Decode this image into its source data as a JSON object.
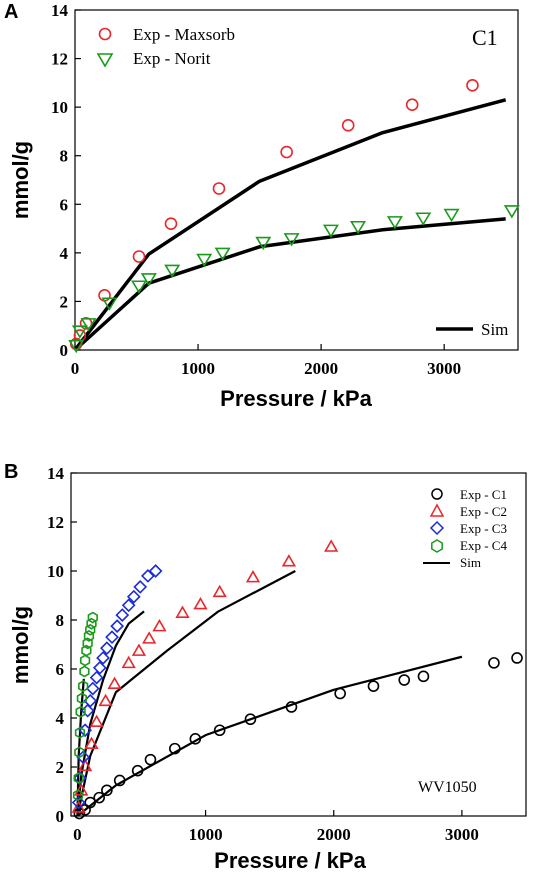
{
  "chart_data": [
    {
      "panel_label": "A",
      "type": "scatter",
      "annotation": "C1",
      "xlabel": "Pressure / kPa",
      "ylabel": "mmol/g",
      "xlim": [
        0,
        3600
      ],
      "ylim": [
        0,
        14
      ],
      "xticks": [
        0,
        1000,
        2000,
        3000
      ],
      "yticks": [
        0,
        2,
        4,
        6,
        8,
        10,
        12,
        14
      ],
      "grid": false,
      "series": [
        {
          "name": "Exp - Maxsorb",
          "marker": "circle",
          "color": "#e8262b",
          "points": [
            [
              10,
              0.25
            ],
            [
              40,
              0.6
            ],
            [
              90,
              1.1
            ],
            [
              240,
              2.25
            ],
            [
              520,
              3.85
            ],
            [
              780,
              5.2
            ],
            [
              1170,
              6.65
            ],
            [
              1720,
              8.15
            ],
            [
              2220,
              9.25
            ],
            [
              2740,
              10.1
            ],
            [
              3230,
              10.9
            ]
          ]
        },
        {
          "name": "Exp - Norit",
          "marker": "triangle-down",
          "color": "#1a9a1a",
          "points": [
            [
              10,
              0.2
            ],
            [
              40,
              0.8
            ],
            [
              110,
              1.1
            ],
            [
              280,
              1.95
            ],
            [
              520,
              2.65
            ],
            [
              600,
              2.95
            ],
            [
              790,
              3.3
            ],
            [
              1050,
              3.75
            ],
            [
              1200,
              4.0
            ],
            [
              1530,
              4.45
            ],
            [
              1760,
              4.6
            ],
            [
              2080,
              4.95
            ],
            [
              2300,
              5.1
            ],
            [
              2600,
              5.3
            ],
            [
              2830,
              5.45
            ],
            [
              3060,
              5.6
            ],
            [
              3550,
              5.75
            ]
          ]
        },
        {
          "name": "Sim",
          "line": true,
          "color": "#000000",
          "segments": [
            [
              [
                0,
                0.0
              ],
              [
                600,
                3.95
              ],
              [
                1500,
                6.95
              ],
              [
                2500,
                8.95
              ],
              [
                3500,
                10.3
              ]
            ],
            [
              [
                0,
                0.0
              ],
              [
                600,
                2.75
              ],
              [
                1500,
                4.25
              ],
              [
                2500,
                4.95
              ],
              [
                3500,
                5.4
              ]
            ]
          ]
        }
      ],
      "legend": [
        {
          "label": "Exp - Maxsorb",
          "marker": "circle",
          "color": "#e8262b"
        },
        {
          "label": "Exp - Norit",
          "marker": "triangle-down",
          "color": "#1a9a1a"
        }
      ],
      "legend_sim": {
        "label": "Sim",
        "color": "#000000"
      }
    },
    {
      "panel_label": "B",
      "type": "scatter",
      "annotation": "WV1050",
      "xlabel": "Pressure / kPa",
      "ylabel": "mmol/g",
      "xlim": [
        -50,
        3500
      ],
      "ylim": [
        0,
        14
      ],
      "xticks": [
        0,
        1000,
        2000,
        3000
      ],
      "yticks": [
        0,
        2,
        4,
        6,
        8,
        10,
        12,
        14
      ],
      "grid": false,
      "series": [
        {
          "name": "Exp - C1",
          "marker": "circle",
          "color": "#000000",
          "points": [
            [
              15,
              0.1
            ],
            [
              60,
              0.25
            ],
            [
              100,
              0.55
            ],
            [
              170,
              0.75
            ],
            [
              230,
              1.05
            ],
            [
              330,
              1.45
            ],
            [
              470,
              1.85
            ],
            [
              570,
              2.3
            ],
            [
              760,
              2.75
            ],
            [
              920,
              3.15
            ],
            [
              1110,
              3.5
            ],
            [
              1350,
              3.95
            ],
            [
              1670,
              4.45
            ],
            [
              2050,
              5.0
            ],
            [
              2310,
              5.3
            ],
            [
              2550,
              5.55
            ],
            [
              2700,
              5.7
            ],
            [
              3250,
              6.25
            ],
            [
              3430,
              6.45
            ]
          ]
        },
        {
          "name": "Exp - C2",
          "marker": "triangle-up",
          "color": "#e8262b",
          "points": [
            [
              10,
              0.35
            ],
            [
              30,
              1.05
            ],
            [
              60,
              2.05
            ],
            [
              110,
              2.95
            ],
            [
              150,
              3.85
            ],
            [
              220,
              4.7
            ],
            [
              290,
              5.4
            ],
            [
              400,
              6.25
            ],
            [
              480,
              6.75
            ],
            [
              560,
              7.25
            ],
            [
              640,
              7.75
            ],
            [
              820,
              8.3
            ],
            [
              960,
              8.65
            ],
            [
              1110,
              9.15
            ],
            [
              1370,
              9.75
            ],
            [
              1650,
              10.4
            ],
            [
              1980,
              11.0
            ]
          ]
        },
        {
          "name": "Exp - C3",
          "marker": "diamond",
          "color": "#1a2bd8",
          "points": [
            [
              10,
              0.55
            ],
            [
              20,
              1.55
            ],
            [
              45,
              2.4
            ],
            [
              60,
              3.5
            ],
            [
              80,
              4.3
            ],
            [
              100,
              4.7
            ],
            [
              120,
              5.2
            ],
            [
              150,
              5.65
            ],
            [
              175,
              6.05
            ],
            [
              200,
              6.45
            ],
            [
              230,
              6.85
            ],
            [
              270,
              7.3
            ],
            [
              310,
              7.75
            ],
            [
              350,
              8.2
            ],
            [
              400,
              8.6
            ],
            [
              440,
              8.95
            ],
            [
              490,
              9.35
            ],
            [
              550,
              9.8
            ],
            [
              610,
              10.0
            ]
          ]
        },
        {
          "name": "Exp - C4",
          "marker": "hexagon",
          "color": "#1a9a1a",
          "points": [
            [
              5,
              0.85
            ],
            [
              10,
              1.55
            ],
            [
              15,
              2.6
            ],
            [
              20,
              3.4
            ],
            [
              25,
              4.25
            ],
            [
              35,
              4.8
            ],
            [
              45,
              5.3
            ],
            [
              55,
              5.9
            ],
            [
              60,
              6.35
            ],
            [
              70,
              6.75
            ],
            [
              80,
              7.05
            ],
            [
              90,
              7.35
            ],
            [
              100,
              7.6
            ],
            [
              110,
              7.85
            ],
            [
              120,
              8.1
            ]
          ]
        },
        {
          "name": "Sim",
          "line": true,
          "color": "#000000",
          "segments": [
            [
              [
                0,
                0.0
              ],
              [
                300,
                1.25
              ],
              [
                1000,
                3.3
              ],
              [
                2000,
                5.15
              ],
              [
                3000,
                6.5
              ]
            ],
            [
              [
                0,
                0.0
              ],
              [
                100,
                2.45
              ],
              [
                300,
                5.05
              ],
              [
                700,
                6.75
              ],
              [
                1100,
                8.35
              ],
              [
                1700,
                10.0
              ]
            ],
            [
              [
                0,
                0.0
              ],
              [
                30,
                1.65
              ],
              [
                100,
                3.75
              ],
              [
                200,
                5.55
              ],
              [
                300,
                6.95
              ],
              [
                400,
                7.85
              ],
              [
                520,
                8.35
              ]
            ],
            [
              [
                0,
                0.0
              ],
              [
                10,
                2.45
              ],
              [
                30,
                4.3
              ],
              [
                50,
                5.6
              ]
            ]
          ]
        }
      ],
      "legend": [
        {
          "label": "Exp - C1",
          "marker": "circle",
          "color": "#000000"
        },
        {
          "label": "Exp - C2",
          "marker": "triangle-up",
          "color": "#e8262b"
        },
        {
          "label": "Exp - C3",
          "marker": "diamond",
          "color": "#1a2bd8"
        },
        {
          "label": "Exp - C4",
          "marker": "hexagon",
          "color": "#1a9a1a"
        }
      ],
      "legend_sim": {
        "label": "Sim",
        "color": "#000000"
      }
    }
  ]
}
